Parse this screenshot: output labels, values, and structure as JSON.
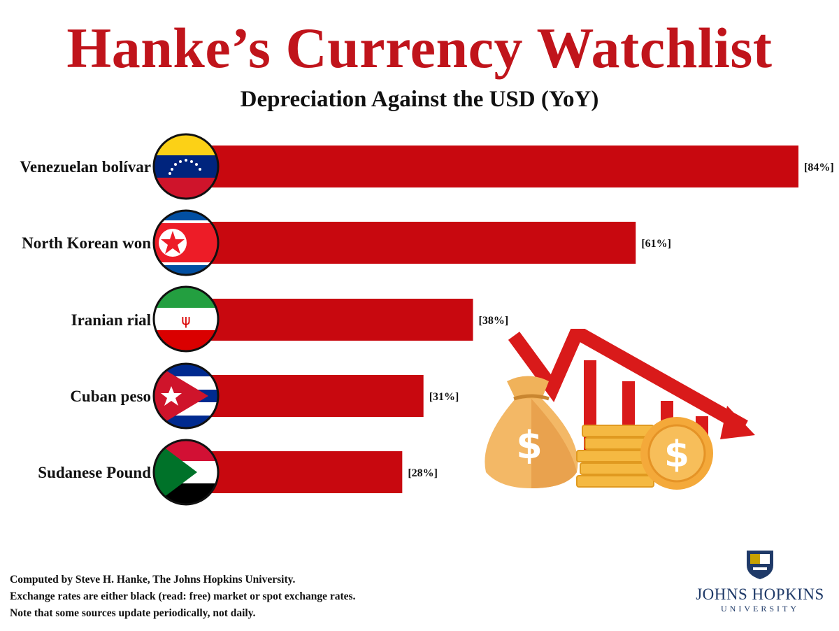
{
  "title": "Hanke’s Currency Watchlist",
  "subtitle": "Depreciation Against the USD (YoY)",
  "chart_data": {
    "type": "bar",
    "orientation": "horizontal",
    "title": "Hanke’s Currency Watchlist",
    "subtitle": "Depreciation Against the USD (YoY)",
    "categories": [
      "Venezuelan bolívar",
      "North Korean won",
      "Iranian rial",
      "Cuban peso",
      "Sudanese Pound"
    ],
    "values": [
      84,
      61,
      38,
      31,
      28
    ],
    "value_labels": [
      "[84%]",
      "[61%]",
      "[38%]",
      "[31%]",
      "[28%]"
    ],
    "unit": "%",
    "xlim": [
      0,
      84
    ],
    "grid": false,
    "legend": "none",
    "bar_color": "#c8080f"
  },
  "footer": {
    "lines": [
      "Computed by Steve H. Hanke, The Johns Hopkins University.",
      "Exchange rates are either black (read: free) market or spot exchange rates.",
      "Note that some sources update periodically, not daily."
    ]
  },
  "logo": {
    "name": "JOHNS HOPKINS",
    "sub": "UNIVERSITY",
    "color": "#1f3a68"
  },
  "icons": [
    "venezuela-flag-icon",
    "north-korea-flag-icon",
    "iran-flag-icon",
    "cuba-flag-icon",
    "sudan-flag-icon",
    "money-bag-icon",
    "coins-icon",
    "down-trend-arrow-icon"
  ]
}
